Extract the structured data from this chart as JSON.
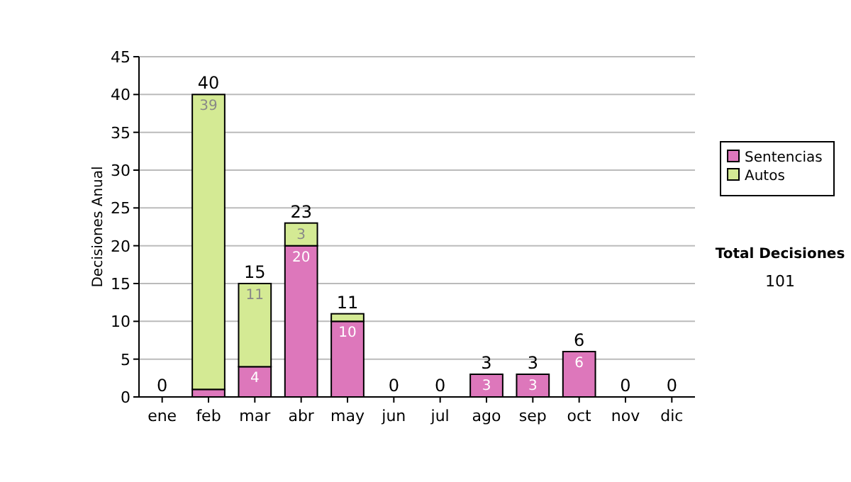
{
  "chart_data": {
    "type": "bar",
    "stacked": true,
    "ylabel": "Decisiones Anual",
    "categories": [
      "ene",
      "feb",
      "mar",
      "abr",
      "may",
      "jun",
      "jul",
      "ago",
      "sep",
      "oct",
      "nov",
      "dic"
    ],
    "series": [
      {
        "name": "Sentencias",
        "color": "#dd77bb",
        "values": [
          0,
          1,
          4,
          20,
          10,
          0,
          0,
          3,
          3,
          6,
          0,
          0
        ],
        "value_labels": [
          null,
          null,
          "4",
          "20",
          "10",
          null,
          null,
          "3",
          "3",
          "6",
          null,
          null
        ]
      },
      {
        "name": "Autos",
        "color": "#d4ea94",
        "values": [
          0,
          39,
          11,
          3,
          1,
          0,
          0,
          0,
          0,
          0,
          0,
          0
        ],
        "value_labels": [
          null,
          "39",
          "11",
          "3",
          null,
          null,
          null,
          null,
          null,
          null,
          null,
          null
        ]
      }
    ],
    "totals": [
      "0",
      "40",
      "15",
      "23",
      "11",
      "0",
      "0",
      "3",
      "3",
      "6",
      "0",
      "0"
    ],
    "ylim": [
      0,
      45
    ],
    "yticks": [
      0,
      5,
      10,
      15,
      20,
      25,
      30,
      35,
      40,
      45
    ],
    "grid": "y",
    "legend": "right",
    "annotations": [
      "Total Decisiones",
      "101"
    ]
  }
}
